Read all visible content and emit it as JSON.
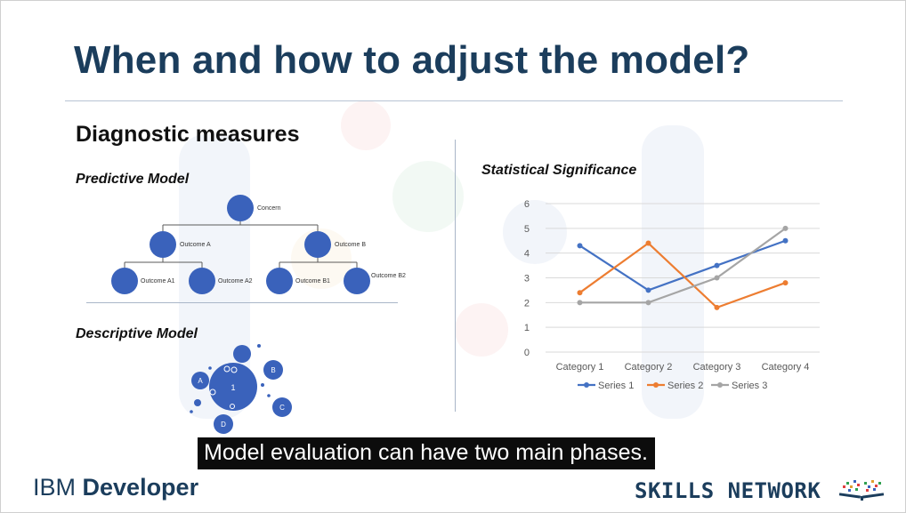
{
  "slide": {
    "title": "When and how to adjust the model?",
    "section_title": "Diagnostic measures",
    "predictive_label": "Predictive Model",
    "descriptive_label": "Descriptive Model",
    "stat_label": "Statistical Significance"
  },
  "tree": {
    "root": "Concern",
    "level1": [
      "Outcome A",
      "Outcome B"
    ],
    "level2": [
      "Outcome A1",
      "Outcome A2",
      "Outcome B1",
      "Outcome B2"
    ],
    "node_color": "#3a62bb"
  },
  "bubbles": {
    "labels": [
      "1",
      "A",
      "B",
      "C",
      "D"
    ],
    "color": "#3a62bb"
  },
  "chart_data": {
    "type": "line",
    "categories": [
      "Category 1",
      "Category 2",
      "Category 3",
      "Category 4"
    ],
    "series": [
      {
        "name": "Series 1",
        "values": [
          4.3,
          2.5,
          3.5,
          4.5
        ],
        "color": "#4472c4"
      },
      {
        "name": "Series 2",
        "values": [
          2.4,
          4.4,
          1.8,
          2.8
        ],
        "color": "#ed7d31"
      },
      {
        "name": "Series 3",
        "values": [
          2,
          2,
          3,
          5
        ],
        "color": "#a5a5a5"
      }
    ],
    "ylim": [
      0,
      6
    ],
    "yticks": [
      "0",
      "1",
      "2",
      "3",
      "4",
      "5",
      "6"
    ],
    "grid": true,
    "legend": "bottom"
  },
  "caption": "Model evaluation can have two main phases.",
  "branding": {
    "ibm_prefix": "IBM ",
    "ibm_bold": "Developer",
    "skills_network": "SKILLS NETWORK"
  }
}
